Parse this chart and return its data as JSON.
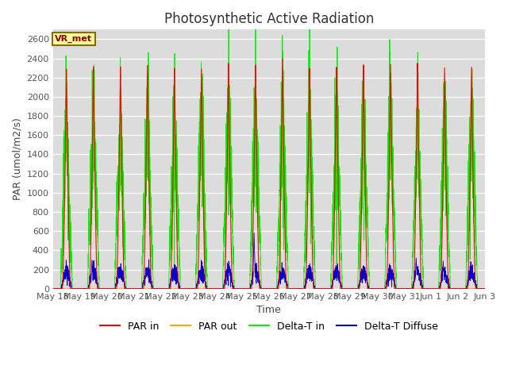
{
  "title": "Photosynthetic Active Radiation",
  "ylabel": "PAR (umol/m2/s)",
  "xlabel": "Time",
  "annotation": "VR_met",
  "ylim": [
    0,
    2700
  ],
  "yticks": [
    0,
    200,
    400,
    600,
    800,
    1000,
    1200,
    1400,
    1600,
    1800,
    2000,
    2200,
    2400,
    2600
  ],
  "background_color": "#dcdcdc",
  "colors": {
    "par_in": "#ff0000",
    "par_out": "#ffa500",
    "delta_t_in": "#00ee00",
    "delta_t_diffuse": "#0000cc"
  },
  "legend_labels": [
    "PAR in",
    "PAR out",
    "Delta-T in",
    "Delta-T Diffuse"
  ],
  "n_days": 16,
  "day_start": 18,
  "points_per_day": 288,
  "par_in_peaks": [
    2300,
    2310,
    2320,
    2310,
    2300,
    2290,
    2330,
    2340,
    2395,
    2300,
    2330,
    2340,
    2340,
    2340,
    2290,
    2310
  ],
  "delta_t_in_peaks": [
    1680,
    1700,
    1580,
    1710,
    1720,
    1750,
    1770,
    1760,
    1760,
    1730,
    1730,
    1700,
    1700,
    1730,
    1700,
    1730
  ],
  "par_out_peaks": [
    0,
    0,
    0,
    0,
    0,
    0,
    215,
    205,
    200,
    195,
    205,
    215,
    195,
    0,
    0,
    0
  ],
  "delta_t_diffuse_peak": 180,
  "title_fontsize": 12,
  "label_fontsize": 9,
  "tick_fontsize": 8,
  "legend_fontsize": 9
}
